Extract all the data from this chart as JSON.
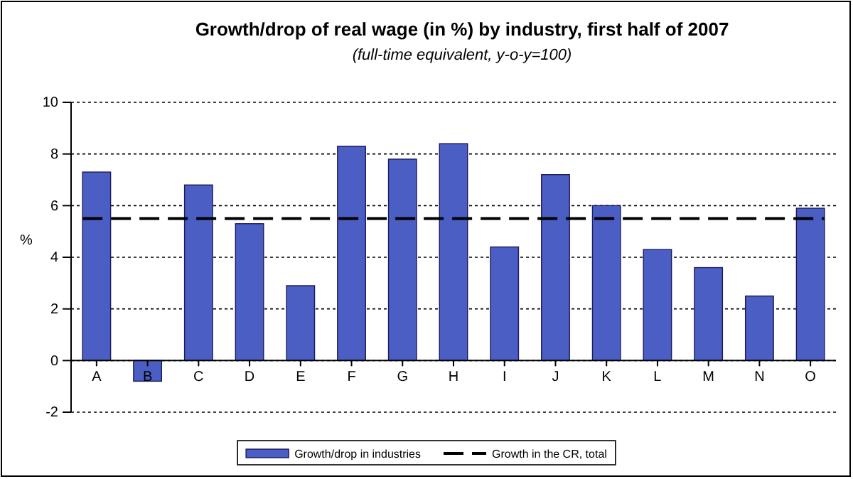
{
  "chart_data": {
    "type": "bar",
    "title": "Growth/drop of real wage (in %) by industry, first half of 2007",
    "subtitle": "(full-time equivalent, y-o-y=100)",
    "ylabel": "%",
    "categories": [
      "A",
      "B",
      "C",
      "D",
      "E",
      "F",
      "G",
      "H",
      "I",
      "J",
      "K",
      "L",
      "M",
      "N",
      "O"
    ],
    "series": [
      {
        "name": "Growth/drop in industries",
        "color": "#4a5ec4",
        "values": [
          7.3,
          -0.8,
          6.8,
          5.3,
          2.9,
          8.3,
          7.8,
          8.4,
          4.4,
          7.2,
          6.0,
          4.3,
          3.6,
          2.5,
          5.9
        ]
      }
    ],
    "ylim": [
      -2,
      10
    ],
    "yticks": [
      -2,
      0,
      2,
      4,
      6,
      8,
      10
    ],
    "grid": "y",
    "legend": "bottom",
    "ref_lines": [
      {
        "axis": "y",
        "value": 5.5,
        "label": "Growth in the CR, total",
        "color": "#000000",
        "line_style": "dashed"
      }
    ]
  }
}
